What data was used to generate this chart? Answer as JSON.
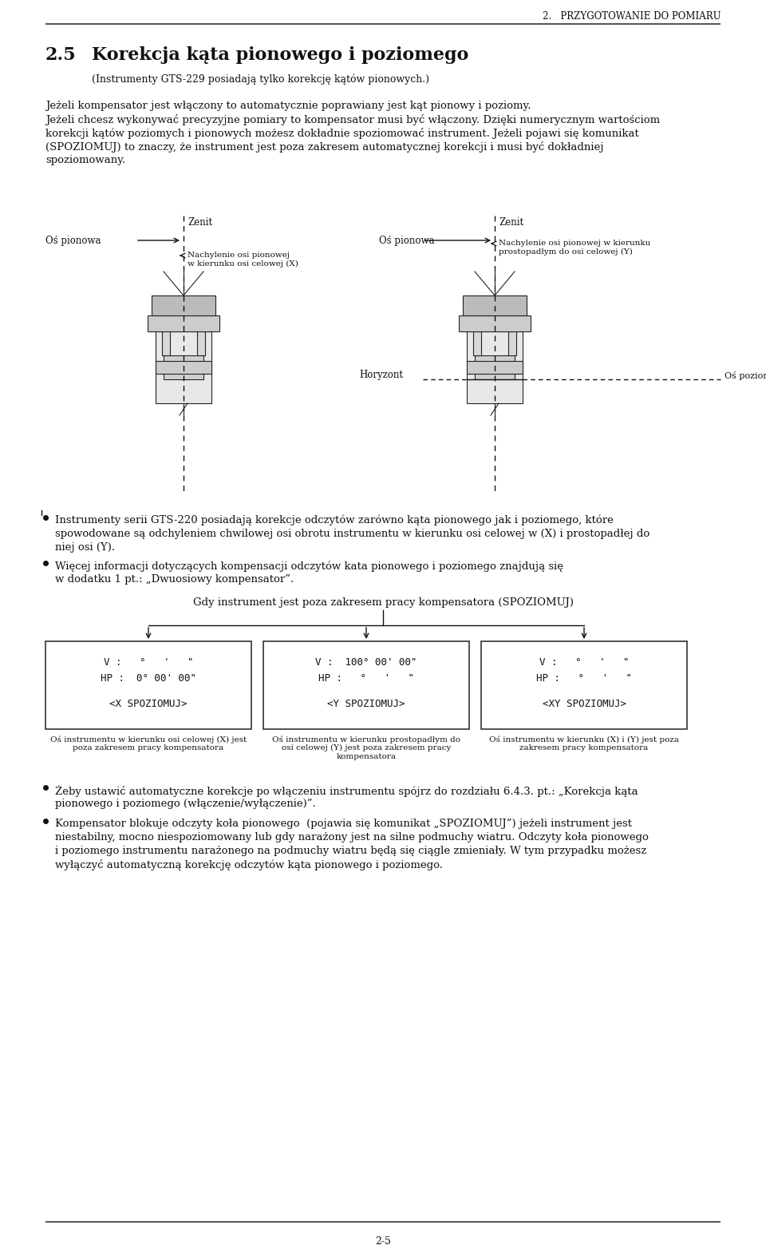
{
  "bg_color": "#ffffff",
  "page_number": "2-5",
  "header_right": "2.   PRZYGOTOWANIE DO POMIARU",
  "section_number": "2.5",
  "section_title": "Korekcja kąta pionowego i poziomego",
  "section_subtitle": "(Instrumenty GTS-229 posiadają tylko korekcję kątów pionowych.)",
  "para1": "Jeżeli kompensator jest włączony to automatycznie poprawiany jest kąt pionowy i poziomy.",
  "para2_line1": "Jeżeli chcesz wykonywać precyzyjne pomiary to kompensator musi być włączony. Dzięki numerycznym wartościom",
  "para2_line2": "korekcji kątów poziomych i pionowych możesz dokładnie spoziomować instrument. Jeżeli pojawi się komunikat",
  "para2_line3": "(SPOZIOMUJ) to znaczy, że instrument jest poza zakresem automatycznej korekcji i musi być dokładniej",
  "para2_line4": "spoziomowany.",
  "diag_os_pionowa_left": "Oś pionowa",
  "diag_zenit_left": "Zenit",
  "diag_os_pionowa_right": "Oś pionowa",
  "diag_zenit_right": "Zenit",
  "diag_nach_left": "Nachylenie osi pionowej\nw kierunku osi celowej (X)",
  "diag_nach_right": "Nachylenie osi pionowej w kierunku\nprostopadłym do osi celowej (Y)",
  "diag_horyzont": "Horyzont",
  "diag_os_pozioma": "Oś pozioma instrumentu",
  "bullet1_line1": "Instrumenty serii GTS-220 posiadają korekcje odczytów zarówno kąta pionowego jak i poziomego, które",
  "bullet1_line2": "spowodowane są odchyleniem chwilowej osi obrotu instrumentu w kierunku osi celowej w (X) i prostopadłej do",
  "bullet1_line3": "niej osi (Y).",
  "bullet2_line1": "Więcej informacji dotyczących kompensacji odczytów kata pionowego i poziomego znajdują się",
  "bullet2_line2": "w dodatku 1 pt.: „Dwuosiowy kompensator”.",
  "centered_note": "Gdy instrument jest poza zakresem pracy kompensatora (SPOZIOMUJ)",
  "box1_line1": "V :   °   '   \"",
  "box1_line2": "HP :  0° 00' 00\"",
  "box1_line3": "<X SPOZIOMUJ>",
  "box2_line1": "V :  100° 00' 00\"",
  "box2_line2": "HP :   °   '   \"",
  "box2_line3": "<Y SPOZIOMUJ>",
  "box3_line1": "V :   °   '   \"",
  "box3_line2": "HP :   °   '   \"",
  "box3_line3": "<XY SPOZIOMUJ>",
  "box1_caption": "Oś instrumentu w kierunku osi celowej (X) jest\npoza zakresem pracy kompensatora",
  "box2_caption": "Oś instrumentu w kierunku prostopadłym do\nosi celowej (Y) jest poza zakresem pracy\nkompensatora",
  "box3_caption": "Oś instrumentu w kierunku (X) i (Y) jest poza\nzakresem pracy kompensatora",
  "fb1_line1": "Żeby ustawić automatyczne korekcje po włączeniu instrumentu spójrz do rozdziału 6.4.3. pt.: „Korekcja kąta",
  "fb1_line2": "pionowego i poziomego (włączenie/wyłączenie)”.",
  "fb2_line1": "Kompensator blokuje odczyty koła pionowego  (pojawia się komunikat „SPOZIOMUJ”) jeżeli instrument jest",
  "fb2_line2": "niestabilny, mocno niespoziomowany lub gdy narażony jest na silne podmuchy wiatru. Odczyty koła pionowego",
  "fb2_line3": "i poziomego instrumentu narażonego na podmuchy wiatru będą się ciągle zmieniały. W tym przypadku możesz",
  "fb2_line4": "wyłączyć automatyczną korekcję odczytów kąta pionowego i poziomego."
}
